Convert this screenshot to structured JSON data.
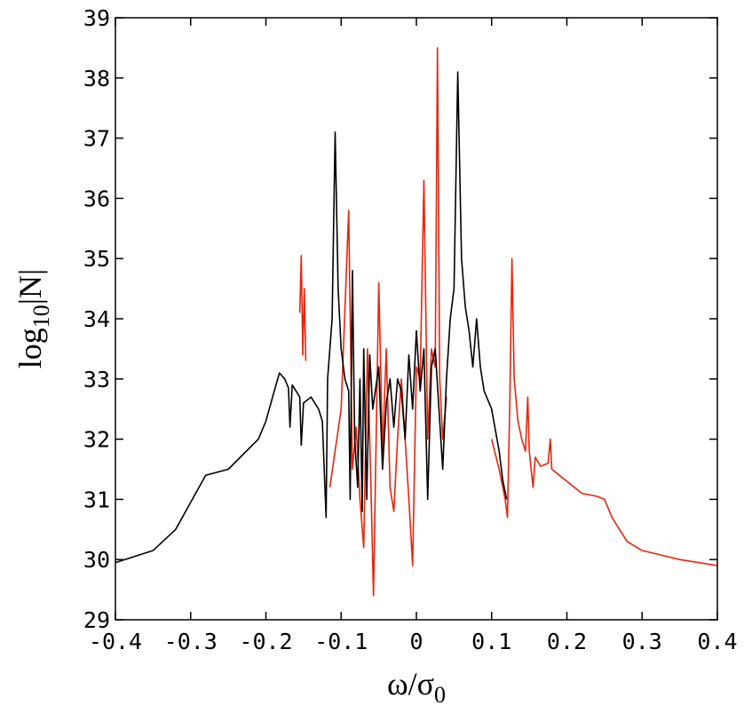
{
  "chart_data": {
    "type": "line",
    "xlabel": [
      "ω/σ",
      "0"
    ],
    "ylabel": [
      "log",
      "10",
      "|N|"
    ],
    "xlim": [
      -0.4,
      0.4
    ],
    "xticks": [
      -0.4,
      -0.3,
      -0.2,
      -0.1,
      0,
      0.1,
      0.2,
      0.3,
      0.4
    ],
    "ylim": [
      29,
      39
    ],
    "yticks": [
      29,
      30,
      31,
      32,
      33,
      34,
      35,
      36,
      37,
      38,
      39
    ],
    "series": [
      {
        "color": "#e8240c",
        "x": [
          -0.155,
          -0.153,
          -0.151,
          -0.149,
          -0.147,
          -0.12,
          -0.115,
          -0.1,
          -0.09,
          -0.085,
          -0.08,
          -0.075,
          -0.07,
          -0.065,
          -0.06,
          -0.057,
          -0.05,
          -0.045,
          -0.04,
          -0.035,
          -0.03,
          -0.025,
          -0.02,
          -0.01,
          -0.005,
          0.0,
          0.005,
          0.01,
          0.015,
          0.02,
          0.025,
          0.028,
          0.031,
          0.035,
          0.04,
          0.05,
          0.1,
          0.11,
          0.118,
          0.121,
          0.124,
          0.127,
          0.13,
          0.135,
          0.14,
          0.145,
          0.148,
          0.15,
          0.155,
          0.158,
          0.165,
          0.175,
          0.178,
          0.18,
          0.2,
          0.22,
          0.24,
          0.25,
          0.26,
          0.28,
          0.3,
          0.35,
          0.4
        ],
        "values": [
          34.1,
          35.05,
          33.4,
          34.5,
          33.3,
          null,
          31.2,
          32.5,
          35.8,
          31.5,
          32.2,
          31.0,
          30.2,
          33.5,
          31.0,
          29.4,
          34.6,
          31.8,
          33.5,
          31.2,
          30.8,
          32.0,
          33.0,
          31.0,
          29.9,
          33.2,
          33.0,
          36.3,
          32.0,
          33.5,
          33.2,
          38.5,
          33.0,
          32.0,
          32.7,
          null,
          32.0,
          31.5,
          31.0,
          30.7,
          32.5,
          35.0,
          33.0,
          32.3,
          32.0,
          31.8,
          32.7,
          31.8,
          31.2,
          31.7,
          31.55,
          31.6,
          32.0,
          31.5,
          31.3,
          31.1,
          31.05,
          31.0,
          30.7,
          30.3,
          30.15,
          30.0,
          29.9
        ]
      },
      {
        "color": "#000000",
        "x": [
          -0.4,
          -0.35,
          -0.32,
          -0.3,
          -0.28,
          -0.265,
          -0.25,
          -0.23,
          -0.21,
          -0.2,
          -0.19,
          -0.182,
          -0.175,
          -0.17,
          -0.168,
          -0.165,
          -0.16,
          -0.155,
          -0.153,
          -0.15,
          -0.14,
          -0.13,
          -0.125,
          -0.12,
          -0.118,
          -0.112,
          -0.108,
          -0.104,
          -0.1,
          -0.095,
          -0.09,
          -0.088,
          -0.085,
          -0.082,
          -0.078,
          -0.075,
          -0.072,
          -0.07,
          -0.066,
          -0.062,
          -0.058,
          -0.05,
          -0.045,
          -0.04,
          -0.035,
          -0.03,
          -0.025,
          -0.02,
          -0.015,
          -0.01,
          -0.005,
          0.0,
          0.005,
          0.01,
          0.015,
          0.02,
          0.025,
          0.03,
          0.035,
          0.04,
          0.045,
          0.05,
          0.055,
          0.06,
          0.065,
          0.07,
          0.075,
          0.08,
          0.085,
          0.09,
          0.1,
          0.11,
          0.115,
          0.12
        ],
        "values": [
          29.95,
          30.15,
          30.5,
          30.95,
          31.4,
          31.45,
          31.5,
          31.75,
          32.0,
          32.3,
          32.75,
          33.1,
          33.0,
          32.85,
          32.2,
          32.9,
          32.8,
          32.7,
          31.9,
          32.6,
          32.7,
          32.5,
          32.3,
          30.7,
          33.0,
          34.0,
          37.1,
          34.5,
          33.5,
          33.0,
          32.8,
          31.0,
          34.8,
          32.0,
          31.2,
          33.0,
          30.8,
          33.5,
          31.0,
          33.4,
          32.5,
          33.2,
          31.5,
          32.6,
          33.0,
          32.2,
          33.0,
          32.8,
          32.0,
          33.4,
          32.5,
          33.8,
          32.8,
          33.5,
          31.0,
          33.2,
          33.5,
          32.5,
          31.5,
          33.0,
          34.0,
          34.5,
          38.1,
          35.0,
          34.2,
          33.8,
          33.2,
          34.0,
          33.2,
          32.8,
          32.5,
          31.8,
          31.3,
          31.0
        ]
      }
    ]
  }
}
